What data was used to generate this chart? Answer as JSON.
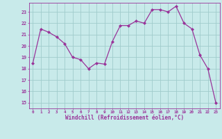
{
  "x": [
    0,
    1,
    2,
    3,
    4,
    5,
    6,
    7,
    8,
    9,
    10,
    11,
    12,
    13,
    14,
    15,
    16,
    17,
    18,
    19,
    20,
    21,
    22,
    23
  ],
  "y": [
    18.5,
    21.5,
    21.2,
    20.8,
    20.2,
    19.0,
    18.8,
    18.0,
    18.5,
    18.4,
    20.4,
    21.8,
    21.8,
    22.2,
    22.0,
    23.2,
    23.2,
    23.0,
    23.5,
    22.0,
    21.5,
    19.2,
    18.0,
    15.0
  ],
  "line_color": "#993399",
  "marker_color": "#993399",
  "bg_color": "#c8eaea",
  "grid_color": "#a0cccc",
  "xlabel": "Windchill (Refroidissement éolien,°C)",
  "xlabel_color": "#993399",
  "tick_color": "#993399",
  "ylim_min": 14.5,
  "ylim_max": 23.8,
  "yticks": [
    15,
    16,
    17,
    18,
    19,
    20,
    21,
    22,
    23
  ],
  "xticks": [
    0,
    1,
    2,
    3,
    4,
    5,
    6,
    7,
    8,
    9,
    10,
    11,
    12,
    13,
    14,
    15,
    16,
    17,
    18,
    19,
    20,
    21,
    22,
    23
  ]
}
